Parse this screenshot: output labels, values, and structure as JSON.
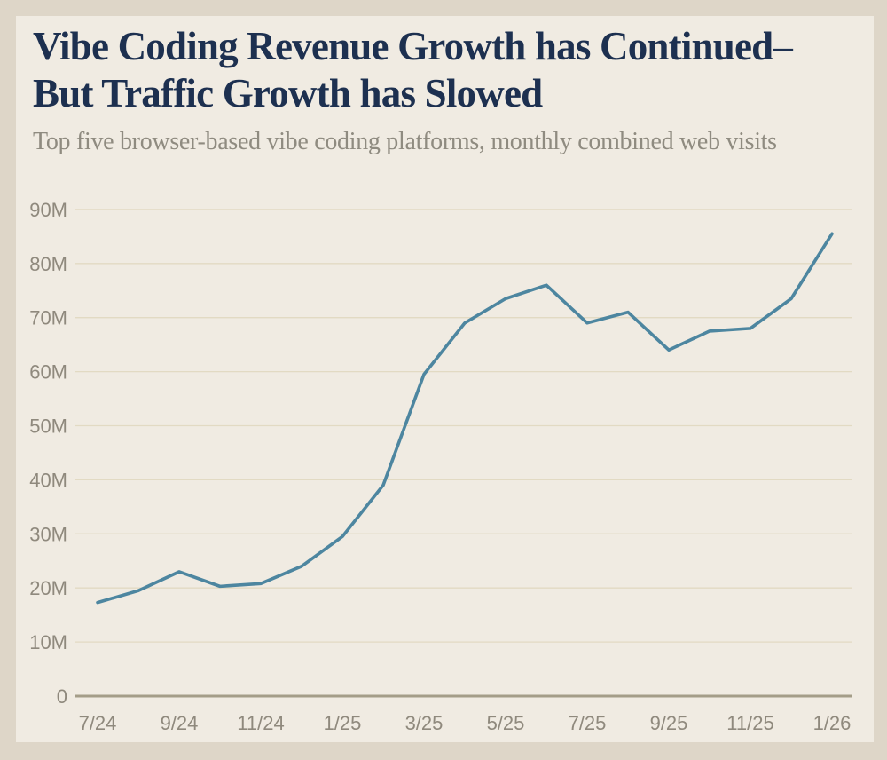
{
  "colors": {
    "page_background": "#ded6c8",
    "card_background": "#f0ebe2",
    "title": "#1d3050",
    "subtitle": "#8f8b80",
    "gridline": "#e2dac3",
    "axis_line": "#a49d88",
    "tick_text": "#8f897d",
    "line": "#4d86a0"
  },
  "header": {
    "title_line1": "Vibe Coding Revenue Growth has Continued–",
    "title_line2": "But Traffic Growth has Slowed",
    "subtitle": "Top five browser-based vibe coding platforms, monthly combined web visits"
  },
  "chart_data": {
    "type": "line",
    "title": "Vibe Coding Revenue Growth has Continued–But Traffic Growth has Slowed",
    "subtitle": "Top five browser-based vibe coding platforms, monthly combined web visits",
    "unit": "millions of web visits",
    "x": [
      "7/24",
      "8/24",
      "9/24",
      "10/24",
      "11/24",
      "12/24",
      "1/25",
      "2/25",
      "3/25",
      "4/25",
      "5/25",
      "6/25",
      "7/25",
      "8/25",
      "9/25",
      "10/25",
      "11/25",
      "12/25",
      "1/26"
    ],
    "values": [
      17.3,
      19.5,
      23,
      20.3,
      20.8,
      24,
      29.5,
      39,
      59.5,
      69,
      73.5,
      76,
      69,
      71,
      64,
      67.5,
      68,
      73.5,
      85.5
    ],
    "x_tick_labels": [
      "7/24",
      "9/24",
      "11/24",
      "1/25",
      "3/25",
      "5/25",
      "7/25",
      "9/25",
      "11/25",
      "1/26"
    ],
    "x_tick_every": 2,
    "y_ticks": [
      0,
      10,
      20,
      30,
      40,
      50,
      60,
      70,
      80,
      90
    ],
    "y_tick_labels": [
      "0",
      "10M",
      "20M",
      "30M",
      "40M",
      "50M",
      "60M",
      "70M",
      "80M",
      "90M"
    ],
    "ylim": [
      0,
      90
    ],
    "grid": "horizontal",
    "legend": "none"
  }
}
